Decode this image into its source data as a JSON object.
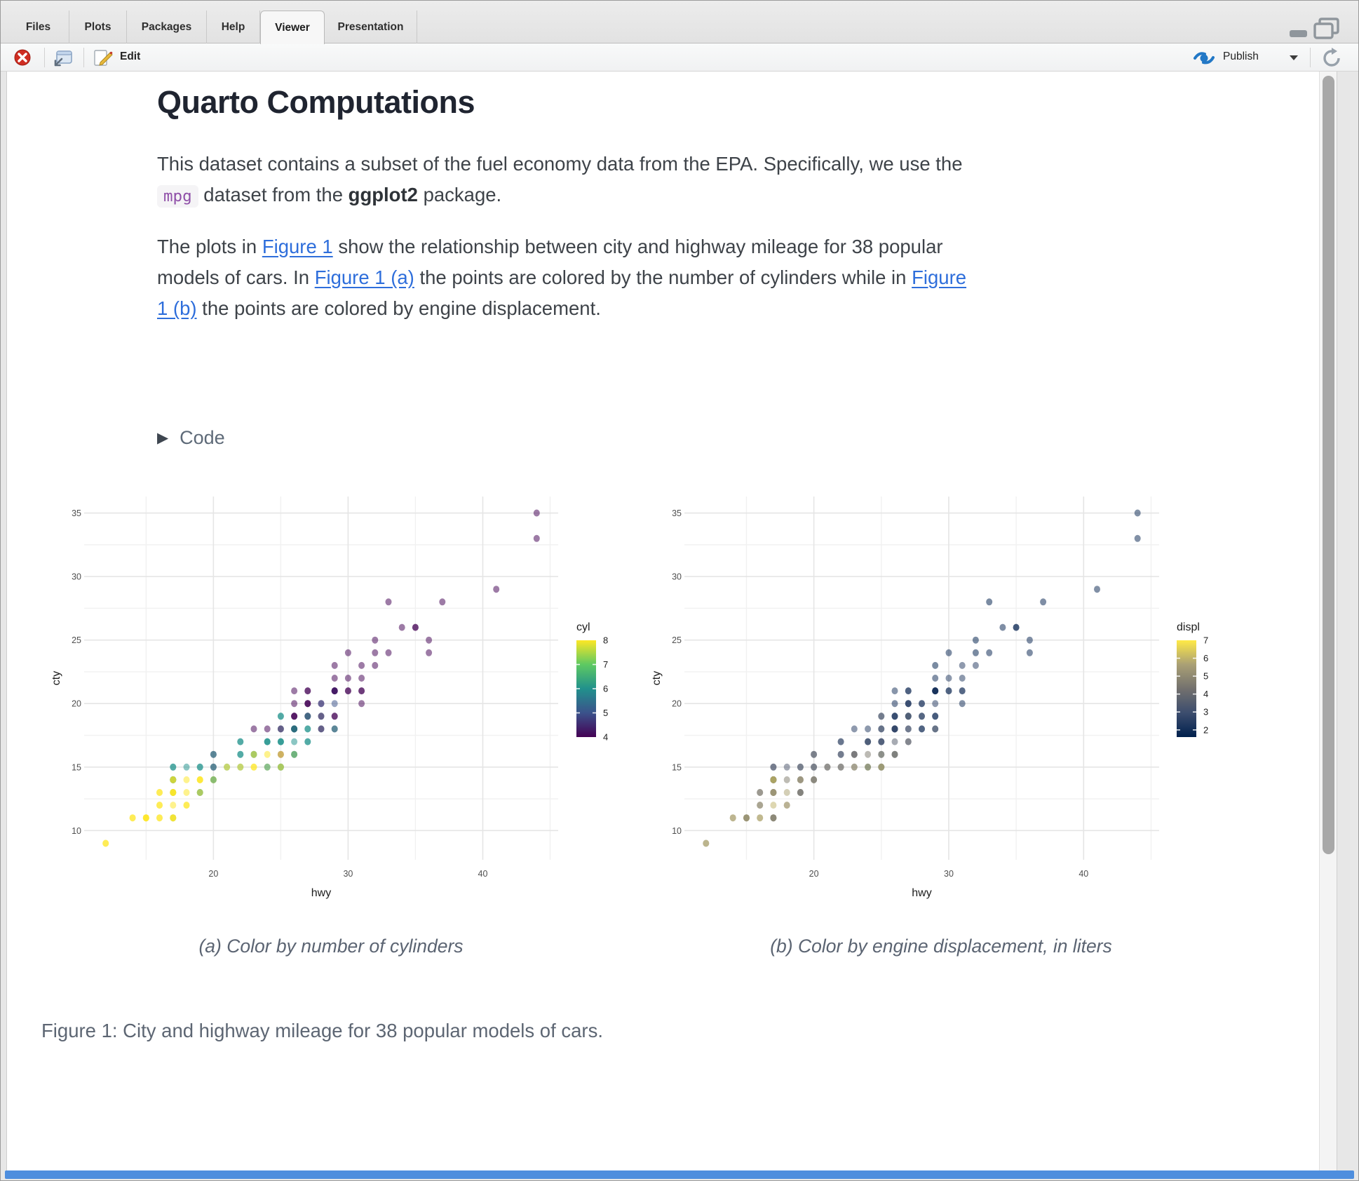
{
  "window": {
    "tabs": [
      {
        "label": "Files"
      },
      {
        "label": "Plots"
      },
      {
        "label": "Packages"
      },
      {
        "label": "Help"
      },
      {
        "label": "Viewer"
      },
      {
        "label": "Presentation"
      }
    ],
    "active_tab": "Viewer",
    "toolbar": {
      "stop_icon": "stop-icon",
      "popout_icon": "open-in-new-window-icon",
      "edit_label": "Edit",
      "publish_label": "Publish",
      "refresh_icon": "refresh-icon"
    }
  },
  "document": {
    "title": "Quarto Computations",
    "para1": [
      {
        "t": "This dataset contains a subset of the fuel economy data from the EPA. Specifically, we use the "
      },
      {
        "t": "mpg",
        "s": "code"
      },
      {
        "t": " dataset from the "
      },
      {
        "t": "ggplot2",
        "s": "bold"
      },
      {
        "t": " package."
      }
    ],
    "para2": [
      {
        "t": "The plots in "
      },
      {
        "t": "Figure 1",
        "s": "link"
      },
      {
        "t": " show the relationship between city and highway mileage for 38 popular models of cars. In "
      },
      {
        "t": "Figure 1 (a)",
        "s": "link"
      },
      {
        "t": " the points are colored by the number of cylinders while in "
      },
      {
        "t": "Figure 1 (b)",
        "s": "link"
      },
      {
        "t": " the points are colored by engine displacement."
      }
    ],
    "code_toggle_label": "Code",
    "caption_a": "(a) Color by number of cylinders",
    "caption_b": "(b) Color by engine displacement, in liters",
    "figure_caption": "Figure 1: City and highway mileage for 38 popular models of cars."
  },
  "chart_data": {
    "type": "scatter",
    "xlabel": "hwy",
    "ylabel": "cty",
    "x_domain": [
      10.4,
      45.6
    ],
    "y_domain": [
      7.7,
      36.3
    ],
    "x_ticks": [
      20,
      30,
      40
    ],
    "y_ticks": [
      10,
      15,
      20,
      25,
      30,
      35
    ],
    "x_minor": [
      15,
      25,
      35,
      45
    ],
    "y_minor": [
      12.5,
      17.5,
      22.5,
      27.5,
      32.5
    ],
    "grid": true,
    "point_alpha": 0.52,
    "grid_color": "#e5e5e5",
    "minor_grid_color": "#f1f1f1",
    "columns": [
      "hwy",
      "cty",
      "cyl",
      "displ"
    ],
    "points": [
      [
        12,
        9,
        8,
        4.7
      ],
      [
        12,
        9,
        8,
        5.9
      ],
      [
        14,
        11,
        8,
        6.1
      ],
      [
        14,
        11,
        8,
        5.3
      ],
      [
        15,
        11,
        8,
        5.3
      ],
      [
        15,
        11,
        8,
        5.7
      ],
      [
        15,
        11,
        8,
        5.9
      ],
      [
        15,
        11,
        8,
        4.6
      ],
      [
        16,
        11,
        8,
        5.2
      ],
      [
        16,
        11,
        8,
        5.9
      ],
      [
        17,
        11,
        6,
        3.3
      ],
      [
        17,
        11,
        8,
        5.2
      ],
      [
        17,
        11,
        8,
        5.4
      ],
      [
        17,
        11,
        8,
        4.6
      ],
      [
        16,
        12,
        8,
        4.7
      ],
      [
        16,
        12,
        8,
        5.2
      ],
      [
        17,
        12,
        8,
        6.0
      ],
      [
        18,
        12,
        8,
        5.4
      ],
      [
        18,
        12,
        8,
        5.6
      ],
      [
        16,
        13,
        8,
        4.6
      ],
      [
        16,
        13,
        8,
        4.6
      ],
      [
        17,
        13,
        6,
        3.9
      ],
      [
        17,
        13,
        8,
        4.7
      ],
      [
        17,
        13,
        8,
        5.7
      ],
      [
        17,
        13,
        8,
        5.0
      ],
      [
        17,
        13,
        8,
        5.4
      ],
      [
        18,
        13,
        8,
        5.7
      ],
      [
        19,
        13,
        6,
        4.0
      ],
      [
        19,
        13,
        6,
        4.0
      ],
      [
        19,
        13,
        8,
        4.6
      ],
      [
        17,
        14,
        6,
        3.7
      ],
      [
        17,
        14,
        6,
        3.9
      ],
      [
        17,
        14,
        6,
        4.2
      ],
      [
        17,
        14,
        6,
        3.3
      ],
      [
        17,
        14,
        8,
        4.7
      ],
      [
        17,
        14,
        8,
        6.5
      ],
      [
        18,
        14,
        8,
        4.7
      ],
      [
        19,
        14,
        8,
        4.7
      ],
      [
        19,
        14,
        8,
        4.7
      ],
      [
        19,
        14,
        8,
        5.3
      ],
      [
        20,
        14,
        8,
        5.3
      ],
      [
        20,
        14,
        8,
        5.4
      ],
      [
        20,
        14,
        6,
        4.0
      ],
      [
        17,
        15,
        6,
        3.4
      ],
      [
        17,
        15,
        6,
        3.4
      ],
      [
        18,
        15,
        6,
        3.4
      ],
      [
        19,
        15,
        6,
        3.7
      ],
      [
        19,
        15,
        6,
        3.4
      ],
      [
        20,
        15,
        4,
        2.7
      ],
      [
        20,
        15,
        6,
        4.0
      ],
      [
        21,
        15,
        6,
        3.8
      ],
      [
        21,
        15,
        8,
        4.6
      ],
      [
        22,
        15,
        6,
        3.8
      ],
      [
        22,
        15,
        8,
        4.6
      ],
      [
        23,
        15,
        8,
        5.7
      ],
      [
        23,
        15,
        8,
        4.6
      ],
      [
        24,
        15,
        8,
        7.0
      ],
      [
        24,
        15,
        6,
        2.8
      ],
      [
        25,
        15,
        6,
        2.8
      ],
      [
        25,
        15,
        6,
        3.1
      ],
      [
        25,
        15,
        8,
        6.2
      ],
      [
        20,
        16,
        4,
        2.7
      ],
      [
        20,
        16,
        6,
        4.0
      ],
      [
        22,
        16,
        6,
        3.3
      ],
      [
        22,
        16,
        6,
        3.3
      ],
      [
        23,
        16,
        6,
        3.8
      ],
      [
        23,
        16,
        6,
        4.0
      ],
      [
        23,
        16,
        8,
        4.2
      ],
      [
        24,
        16,
        8,
        4.6
      ],
      [
        25,
        16,
        4,
        1.8
      ],
      [
        25,
        16,
        8,
        5.3
      ],
      [
        26,
        16,
        6,
        2.8
      ],
      [
        26,
        16,
        8,
        5.7
      ],
      [
        26,
        16,
        6,
        3.8
      ],
      [
        22,
        17,
        6,
        3.0
      ],
      [
        22,
        17,
        6,
        3.0
      ],
      [
        24,
        17,
        6,
        3.0
      ],
      [
        24,
        17,
        6,
        3.3
      ],
      [
        24,
        17,
        6,
        2.7
      ],
      [
        25,
        17,
        6,
        2.8
      ],
      [
        25,
        17,
        6,
        3.1
      ],
      [
        25,
        17,
        6,
        3.1
      ],
      [
        26,
        17,
        6,
        3.6
      ],
      [
        27,
        17,
        6,
        3.8
      ],
      [
        27,
        17,
        6,
        3.8
      ],
      [
        23,
        18,
        4,
        2.5
      ],
      [
        24,
        18,
        4,
        2.4
      ],
      [
        25,
        18,
        6,
        3.8
      ],
      [
        25,
        18,
        4,
        2.5
      ],
      [
        26,
        18,
        4,
        1.8
      ],
      [
        26,
        18,
        6,
        2.8
      ],
      [
        26,
        18,
        6,
        2.5
      ],
      [
        26,
        18,
        6,
        2.5
      ],
      [
        26,
        18,
        4,
        2.4
      ],
      [
        26,
        18,
        6,
        3.0
      ],
      [
        27,
        18,
        6,
        3.1
      ],
      [
        27,
        18,
        6,
        3.3
      ],
      [
        28,
        18,
        6,
        3.0
      ],
      [
        28,
        18,
        4,
        2.0
      ],
      [
        29,
        18,
        4,
        1.8
      ],
      [
        29,
        18,
        6,
        3.5
      ],
      [
        25,
        19,
        6,
        3.0
      ],
      [
        25,
        19,
        6,
        3.5
      ],
      [
        26,
        19,
        4,
        2.0
      ],
      [
        26,
        19,
        4,
        2.2
      ],
      [
        26,
        19,
        4,
        2.5
      ],
      [
        27,
        19,
        4,
        2.0
      ],
      [
        27,
        19,
        4,
        2.4
      ],
      [
        27,
        19,
        6,
        3.5
      ],
      [
        28,
        19,
        6,
        3.3
      ],
      [
        28,
        19,
        4,
        2.0
      ],
      [
        29,
        19,
        4,
        2.0
      ],
      [
        29,
        19,
        4,
        2.0
      ],
      [
        26,
        20,
        4,
        2.0
      ],
      [
        27,
        20,
        4,
        2.0
      ],
      [
        27,
        20,
        4,
        2.5
      ],
      [
        27,
        20,
        4,
        2.5
      ],
      [
        28,
        20,
        4,
        2.0
      ],
      [
        28,
        20,
        5,
        2.5
      ],
      [
        29,
        20,
        5,
        2.5
      ],
      [
        31,
        20,
        4,
        2.0
      ],
      [
        26,
        21,
        4,
        2.2
      ],
      [
        27,
        21,
        4,
        2.2
      ],
      [
        27,
        21,
        4,
        2.2
      ],
      [
        29,
        21,
        4,
        1.8
      ],
      [
        29,
        21,
        4,
        2.0
      ],
      [
        29,
        21,
        4,
        2.2
      ],
      [
        29,
        21,
        5,
        2.5
      ],
      [
        29,
        21,
        4,
        1.8
      ],
      [
        30,
        21,
        4,
        2.0
      ],
      [
        30,
        21,
        4,
        2.4
      ],
      [
        31,
        21,
        4,
        2.4
      ],
      [
        31,
        21,
        4,
        2.4
      ],
      [
        29,
        22,
        4,
        2.0
      ],
      [
        30,
        22,
        4,
        2.4
      ],
      [
        31,
        22,
        4,
        2.4
      ],
      [
        29,
        23,
        4,
        1.6
      ],
      [
        31,
        23,
        4,
        2.5
      ],
      [
        32,
        23,
        4,
        2.5
      ],
      [
        30,
        24,
        4,
        1.8
      ],
      [
        32,
        24,
        4,
        1.6
      ],
      [
        33,
        24,
        4,
        1.8
      ],
      [
        36,
        24,
        4,
        1.8
      ],
      [
        32,
        25,
        4,
        1.6
      ],
      [
        36,
        25,
        4,
        1.8
      ],
      [
        34,
        26,
        4,
        1.8
      ],
      [
        35,
        26,
        4,
        1.8
      ],
      [
        35,
        26,
        4,
        1.8
      ],
      [
        33,
        28,
        4,
        1.6
      ],
      [
        37,
        28,
        4,
        1.8
      ],
      [
        41,
        29,
        4,
        1.9
      ],
      [
        44,
        33,
        4,
        1.9
      ],
      [
        44,
        35,
        4,
        1.9
      ]
    ],
    "charts": [
      {
        "name": "a",
        "color_by": "cyl",
        "legend_title": "cyl",
        "legend_labels": [
          8,
          7,
          6,
          5,
          4
        ],
        "color_domain": [
          4,
          8
        ],
        "colormap": "viridis",
        "legend_position": "right"
      },
      {
        "name": "b",
        "color_by": "displ",
        "legend_title": "displ",
        "legend_labels": [
          7,
          6,
          5,
          4,
          3,
          2
        ],
        "color_domain": [
          1.6,
          7.0
        ],
        "colormap": "cividis",
        "legend_position": "right"
      }
    ],
    "colormaps": {
      "viridis": [
        "#440154",
        "#3b528b",
        "#21918c",
        "#5ec962",
        "#fde725"
      ],
      "cividis": [
        "#00204d",
        "#3c4d6e",
        "#73716e",
        "#aaa075",
        "#ffea46"
      ]
    }
  }
}
